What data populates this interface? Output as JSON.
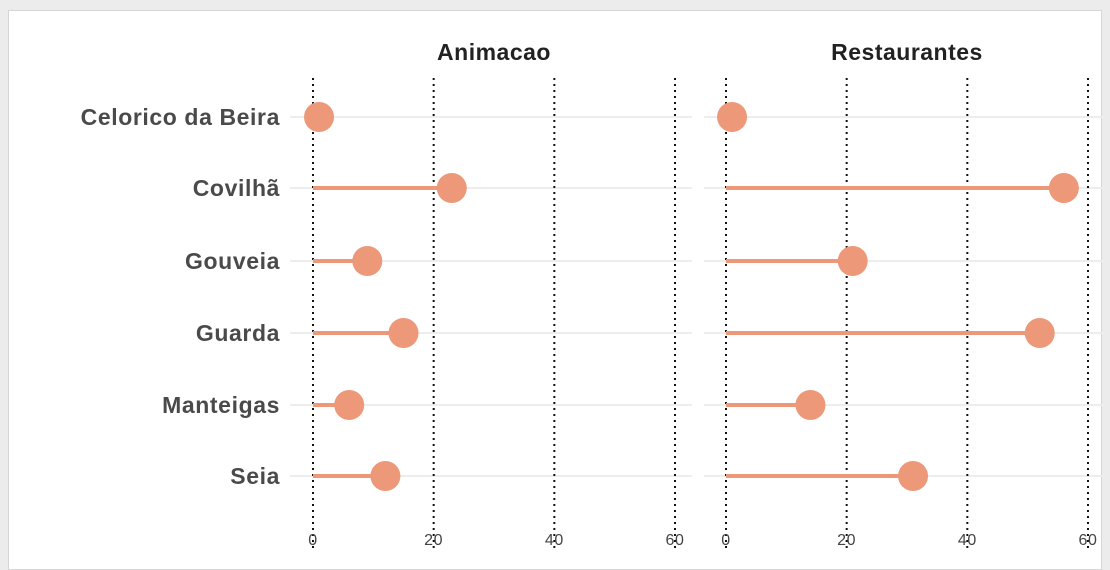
{
  "chart_data": {
    "type": "lollipop",
    "categories": [
      "Celorico da Beira",
      "Covilhã",
      "Gouveia",
      "Guarda",
      "Manteigas",
      "Seia"
    ],
    "facets": [
      {
        "title": "Animacao",
        "values": [
          1,
          23,
          9,
          15,
          6,
          12
        ]
      },
      {
        "title": "Restaurantes",
        "values": [
          1,
          56,
          21,
          52,
          14,
          31
        ]
      }
    ],
    "xlim": [
      0,
      60
    ],
    "xticks": [
      0,
      20,
      40,
      60
    ],
    "grid": "vertical dotted at ticks",
    "colors": {
      "point": "#ec9879",
      "segment": "#ec9879",
      "gridline": "#111111",
      "row_line": "#ededed"
    }
  }
}
